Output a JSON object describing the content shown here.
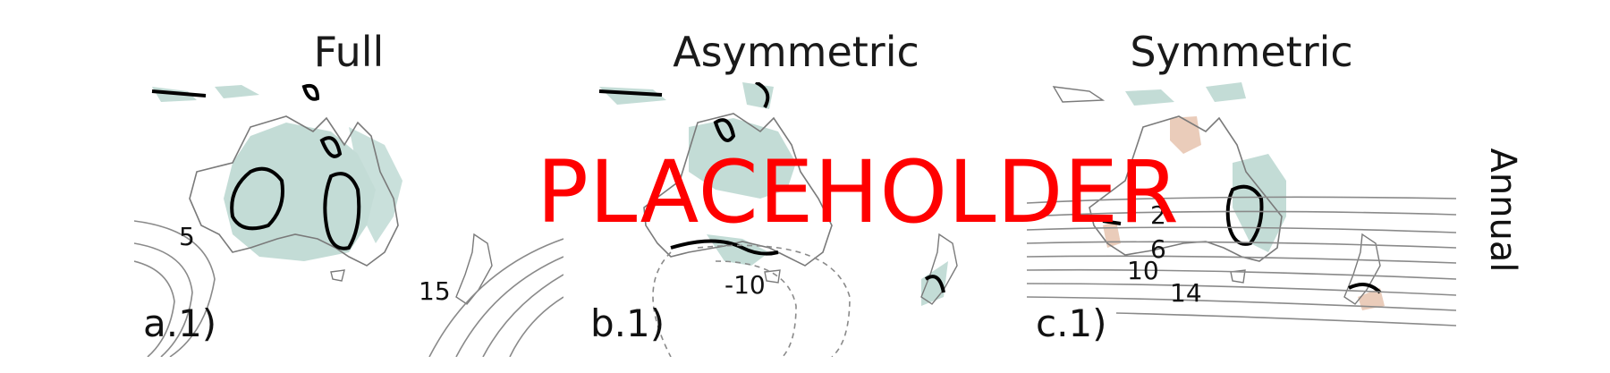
{
  "panels": [
    {
      "title": "Full",
      "label": "a.1)",
      "contour_labels": [
        "5",
        "15"
      ]
    },
    {
      "title": "Asymmetric",
      "label": "b.1)",
      "contour_labels": [
        "-10"
      ]
    },
    {
      "title": "Symmetric",
      "label": "c.1)",
      "contour_labels": [
        "2",
        "6",
        "10",
        "14"
      ]
    }
  ],
  "row_label": "Annual",
  "overlay_text": "PLACEHOLDER",
  "colors": {
    "positive_shading": "#b9d6cf",
    "negative_shading": "#e8c7b3",
    "contour": "#8a8a8a",
    "outline": "#7a7a7a",
    "significance": "#000000",
    "overlay": "#ff0000"
  }
}
